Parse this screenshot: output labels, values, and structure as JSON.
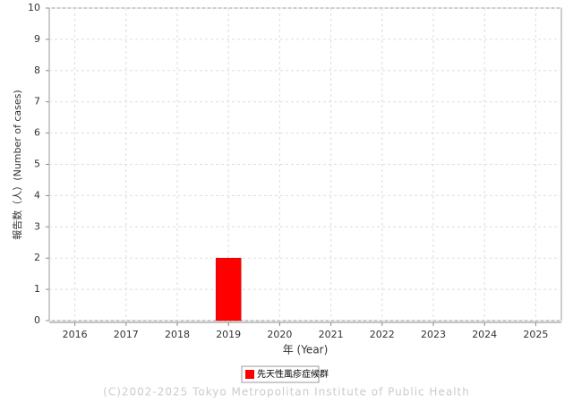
{
  "chart_data": {
    "type": "bar",
    "x_label": "年 (Year)",
    "y_label": "報告数（人）(Number of cases)",
    "categories": [
      "2016",
      "2017",
      "2018",
      "2019",
      "2020",
      "2021",
      "2022",
      "2023",
      "2024",
      "2025"
    ],
    "series": [
      {
        "name": "先天性風疹症候群",
        "color": "#ff0000",
        "values": [
          0,
          0,
          0,
          2,
          0,
          0,
          0,
          0,
          0,
          0
        ]
      }
    ],
    "ylim": [
      0,
      10
    ],
    "yticks": [
      0,
      1,
      2,
      3,
      4,
      5,
      6,
      7,
      8,
      9,
      10
    ],
    "grid": true,
    "legend": "bottom",
    "source": "(C)2002-2025 Tokyo Metropolitan Institute of Public Health"
  }
}
